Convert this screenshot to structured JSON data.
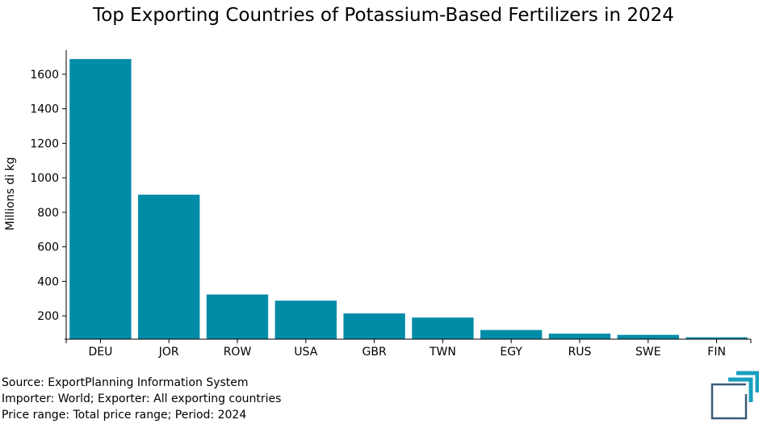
{
  "chart_data": {
    "type": "bar",
    "title": "Top Exporting Countries of Potassium-Based Fertilizers in 2024",
    "xlabel": "",
    "ylabel": "Millions di kg",
    "categories": [
      "DEU",
      "JOR",
      "ROW",
      "USA",
      "GBR",
      "TWN",
      "EGY",
      "RUS",
      "SWE",
      "FIN"
    ],
    "values": [
      1688,
      902,
      324,
      288,
      214,
      190,
      118,
      97,
      90,
      76
    ],
    "ylim": [
      65,
      1740
    ],
    "yticks": [
      200,
      400,
      600,
      800,
      1000,
      1200,
      1400,
      1600
    ],
    "grid": false,
    "bar_color": "#008ba7"
  },
  "footer": {
    "source": "Source: ExportPlanning Information System",
    "filter": "Importer: World; Exporter: All exporting countries",
    "price": "Price range: Total price range; Period: 2024"
  },
  "logo": {
    "icon": "exportplanning-logo-icon",
    "color_dark": "#3a5a78",
    "color_accent": "#1a9fc0"
  }
}
